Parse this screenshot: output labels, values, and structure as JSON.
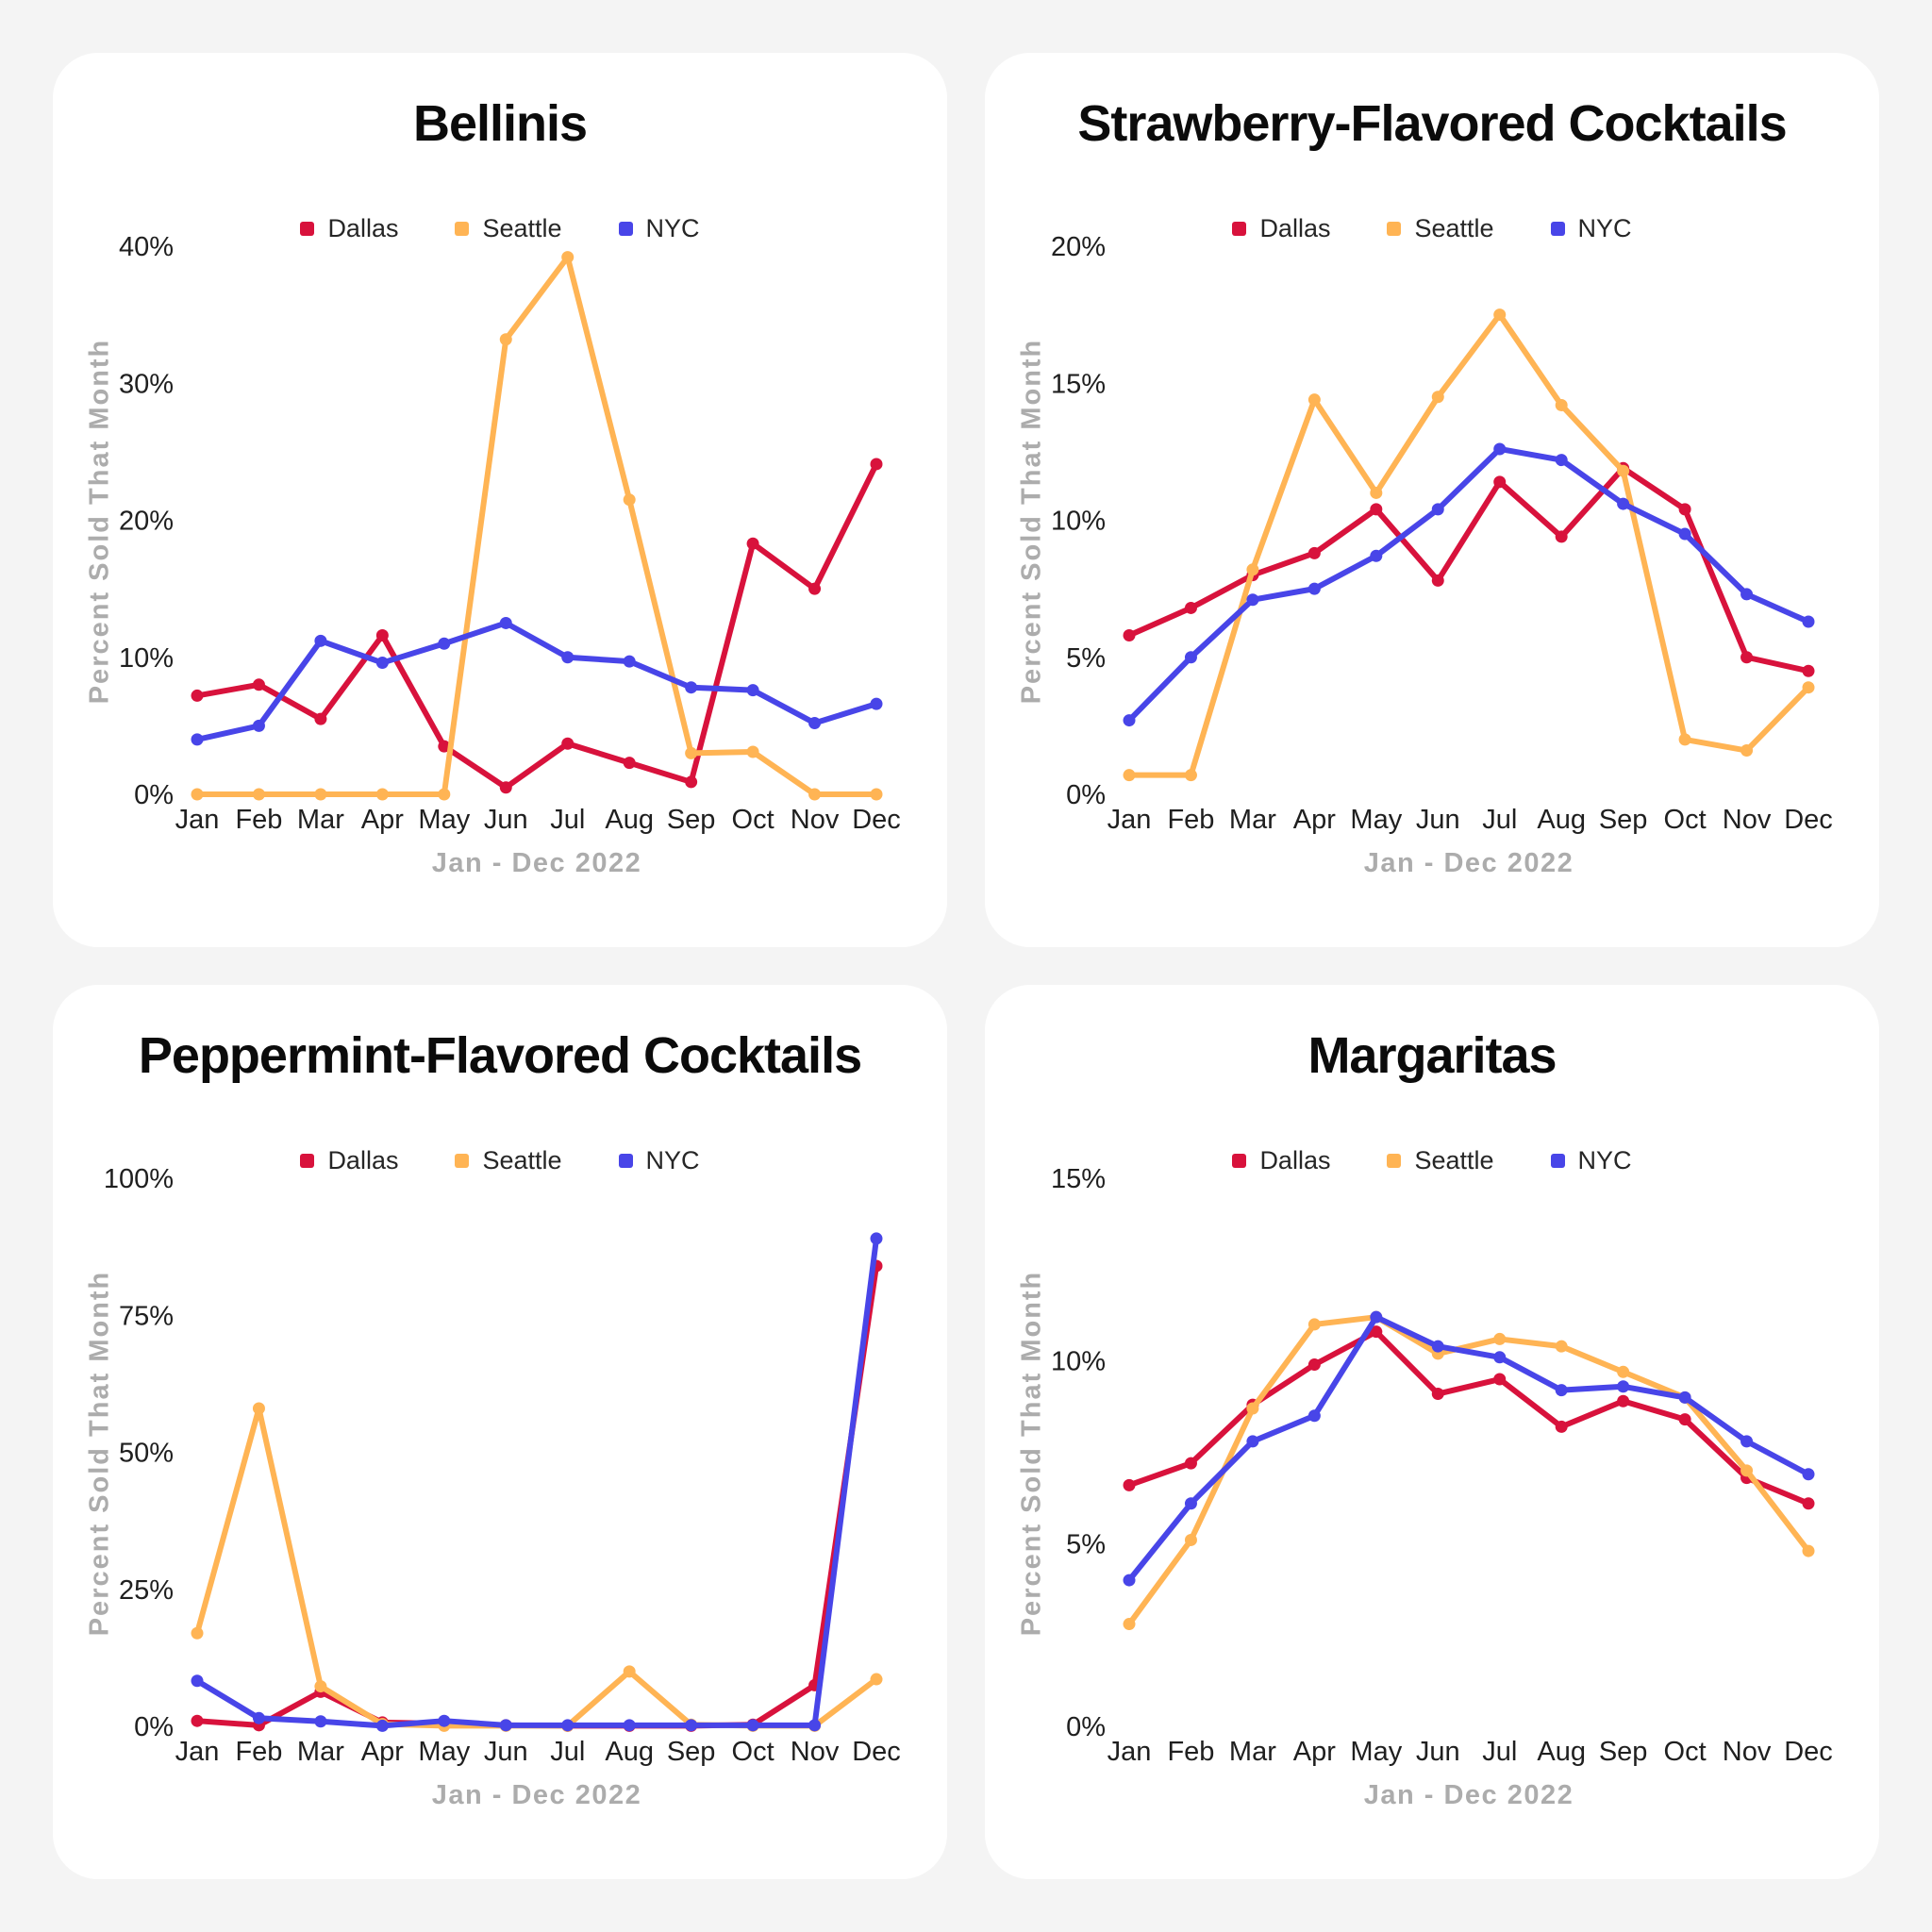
{
  "page": {
    "background_color": "#f4f4f4",
    "card_color": "#ffffff",
    "muted_label_color": "#acacac"
  },
  "series_colors": {
    "dallas": "#d8123c",
    "seattle": "#ffb454",
    "nyc": "#4845e8"
  },
  "months": [
    "Jan",
    "Feb",
    "Mar",
    "Apr",
    "May",
    "Jun",
    "Jul",
    "Aug",
    "Sep",
    "Oct",
    "Nov",
    "Dec"
  ],
  "chart_data": [
    {
      "type": "line",
      "title": "Bellinis",
      "xlabel": "Jan - Dec 2022",
      "ylabel": "Percent Sold That Month",
      "categories": [
        "Jan",
        "Feb",
        "Mar",
        "Apr",
        "May",
        "Jun",
        "Jul",
        "Aug",
        "Sep",
        "Oct",
        "Nov",
        "Dec"
      ],
      "ylim": [
        0,
        40
      ],
      "yticks": [
        0,
        10,
        20,
        30,
        40
      ],
      "ytick_suffix": "%",
      "grid": false,
      "legend_position": "top",
      "series": [
        {
          "name": "Dallas",
          "color": "#d8123c",
          "values": [
            7.2,
            8.0,
            5.5,
            11.6,
            3.5,
            0.5,
            3.7,
            2.3,
            0.9,
            18.3,
            15.0,
            24.1
          ]
        },
        {
          "name": "Seattle",
          "color": "#ffb454",
          "values": [
            0,
            0,
            0,
            0,
            0,
            33.2,
            39.2,
            21.5,
            3.0,
            3.1,
            0,
            0
          ]
        },
        {
          "name": "NYC",
          "color": "#4845e8",
          "values": [
            4.0,
            5.0,
            11.2,
            9.6,
            11.0,
            12.5,
            10.0,
            9.7,
            7.8,
            7.6,
            5.2,
            6.6
          ]
        }
      ]
    },
    {
      "type": "line",
      "title": "Strawberry-Flavored Cocktails",
      "xlabel": "Jan - Dec 2022",
      "ylabel": "Percent Sold That Month",
      "categories": [
        "Jan",
        "Feb",
        "Mar",
        "Apr",
        "May",
        "Jun",
        "Jul",
        "Aug",
        "Sep",
        "Oct",
        "Nov",
        "Dec"
      ],
      "ylim": [
        0,
        20
      ],
      "yticks": [
        0,
        5,
        10,
        15,
        20
      ],
      "ytick_suffix": "%",
      "grid": false,
      "legend_position": "top",
      "series": [
        {
          "name": "Dallas",
          "color": "#d8123c",
          "values": [
            5.8,
            6.8,
            8.0,
            8.8,
            10.4,
            7.8,
            11.4,
            9.4,
            11.9,
            10.4,
            5.0,
            4.5
          ]
        },
        {
          "name": "Seattle",
          "color": "#ffb454",
          "values": [
            0.7,
            0.7,
            8.2,
            14.4,
            11.0,
            14.5,
            17.5,
            14.2,
            11.8,
            2.0,
            1.6,
            3.9
          ]
        },
        {
          "name": "NYC",
          "color": "#4845e8",
          "values": [
            2.7,
            5.0,
            7.1,
            7.5,
            8.7,
            10.4,
            12.6,
            12.2,
            10.6,
            9.5,
            7.3,
            6.3
          ]
        }
      ]
    },
    {
      "type": "line",
      "title": "Peppermint-Flavored Cocktails",
      "xlabel": "Jan - Dec 2022",
      "ylabel": "Percent Sold That Month",
      "categories": [
        "Jan",
        "Feb",
        "Mar",
        "Apr",
        "May",
        "Jun",
        "Jul",
        "Aug",
        "Sep",
        "Oct",
        "Nov",
        "Dec"
      ],
      "ylim": [
        0,
        100
      ],
      "yticks": [
        0,
        25,
        50,
        75,
        100
      ],
      "ytick_suffix": "%",
      "grid": false,
      "legend_position": "top",
      "series": [
        {
          "name": "Dallas",
          "color": "#d8123c",
          "values": [
            1.0,
            0.2,
            6.3,
            0.7,
            0.5,
            0.2,
            0.1,
            0.1,
            0.1,
            0.3,
            7.5,
            84
          ]
        },
        {
          "name": "Seattle",
          "color": "#ffb454",
          "values": [
            17,
            58,
            7.3,
            0.4,
            0.1,
            0.1,
            0.1,
            10,
            0.3,
            0.1,
            0.1,
            8.6
          ]
        },
        {
          "name": "NYC",
          "color": "#4845e8",
          "values": [
            8.3,
            1.5,
            0.9,
            0.1,
            1.0,
            0.2,
            0.2,
            0.2,
            0.2,
            0.2,
            0.2,
            89
          ]
        }
      ]
    },
    {
      "type": "line",
      "title": "Margaritas",
      "xlabel": "Jan - Dec 2022",
      "ylabel": "Percent Sold That Month",
      "categories": [
        "Jan",
        "Feb",
        "Mar",
        "Apr",
        "May",
        "Jun",
        "Jul",
        "Aug",
        "Sep",
        "Oct",
        "Nov",
        "Dec"
      ],
      "ylim": [
        0,
        15
      ],
      "yticks": [
        0,
        5,
        10,
        15
      ],
      "ytick_suffix": "%",
      "grid": false,
      "legend_position": "top",
      "series": [
        {
          "name": "Dallas",
          "color": "#d8123c",
          "values": [
            6.6,
            7.2,
            8.8,
            9.9,
            10.8,
            9.1,
            9.5,
            8.2,
            8.9,
            8.4,
            6.8,
            6.1
          ]
        },
        {
          "name": "Seattle",
          "color": "#ffb454",
          "values": [
            2.8,
            5.1,
            8.7,
            11.0,
            11.2,
            10.2,
            10.6,
            10.4,
            9.7,
            9.0,
            7.0,
            4.8
          ]
        },
        {
          "name": "NYC",
          "color": "#4845e8",
          "values": [
            4.0,
            6.1,
            7.8,
            8.5,
            11.2,
            10.4,
            10.1,
            9.2,
            9.3,
            9.0,
            7.8,
            6.9
          ]
        }
      ]
    }
  ]
}
